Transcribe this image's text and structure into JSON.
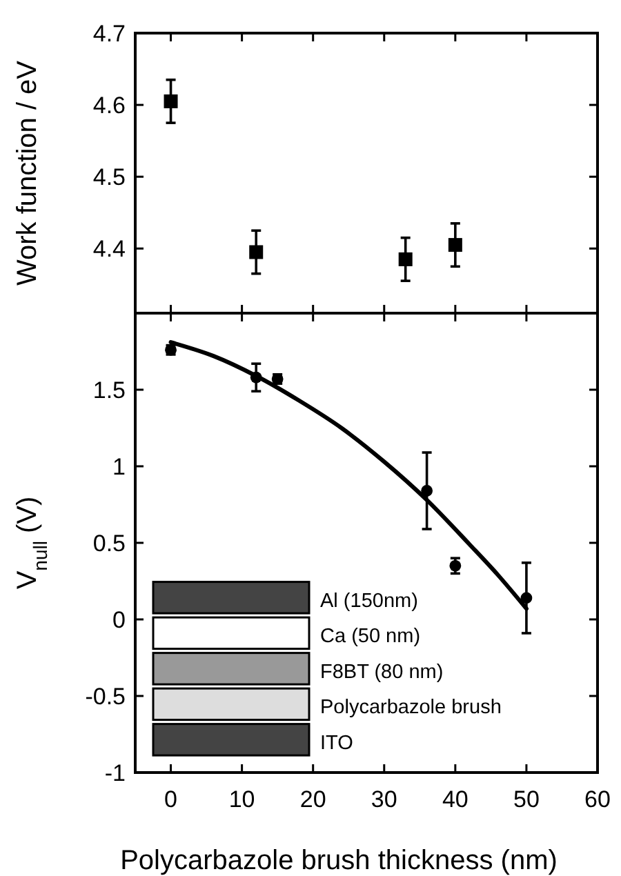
{
  "chart_data": [
    {
      "type": "scatter",
      "ylabel": "Work function / eV",
      "xlim": [
        -5,
        60
      ],
      "xticks": [
        0,
        10,
        20,
        30,
        40,
        50,
        60
      ],
      "ylim": [
        4.31,
        4.7
      ],
      "yticks": [
        4.4,
        4.5,
        4.6,
        4.7
      ],
      "tick_labels": "y",
      "marker": "square",
      "series": [
        {
          "color": "#000000",
          "x": [
            0,
            12,
            33,
            40
          ],
          "values": [
            4.605,
            4.395,
            4.385,
            4.405
          ],
          "errors": [
            0.03,
            0.03,
            0.03,
            0.03
          ]
        }
      ]
    },
    {
      "type": "scatter",
      "xlabel": "Polycarbazole brush thickness (nm)",
      "ylabel": "V$_{null}$ (V)",
      "xlim": [
        -5,
        60
      ],
      "xticks": [
        0,
        10,
        20,
        30,
        40,
        50,
        60
      ],
      "ylim": [
        -1,
        2
      ],
      "yticks": [
        -1,
        -0.5,
        0,
        0.5,
        1,
        1.5
      ],
      "annotations": [
        "Al (150nm)",
        "Ca (50 nm)",
        "F8BT (80 nm)",
        "Polycarbazole brush",
        "ITO"
      ],
      "series": [
        {
          "color": "#000000",
          "marker": "circle",
          "x": [
            0,
            12,
            15,
            36,
            40,
            50
          ],
          "values": [
            1.76,
            1.58,
            1.57,
            0.84,
            0.35,
            0.14
          ],
          "errors": [
            0.03,
            0.09,
            0.03,
            0.25,
            0.05,
            0.23
          ]
        },
        {
          "type": "line",
          "color": "#000000",
          "line_style": "solid",
          "x": [
            0,
            6,
            12,
            18,
            24,
            30,
            36,
            42,
            46,
            50
          ],
          "values": [
            1.81,
            1.72,
            1.59,
            1.43,
            1.25,
            1.03,
            0.78,
            0.49,
            0.29,
            0.07
          ]
        }
      ]
    }
  ]
}
